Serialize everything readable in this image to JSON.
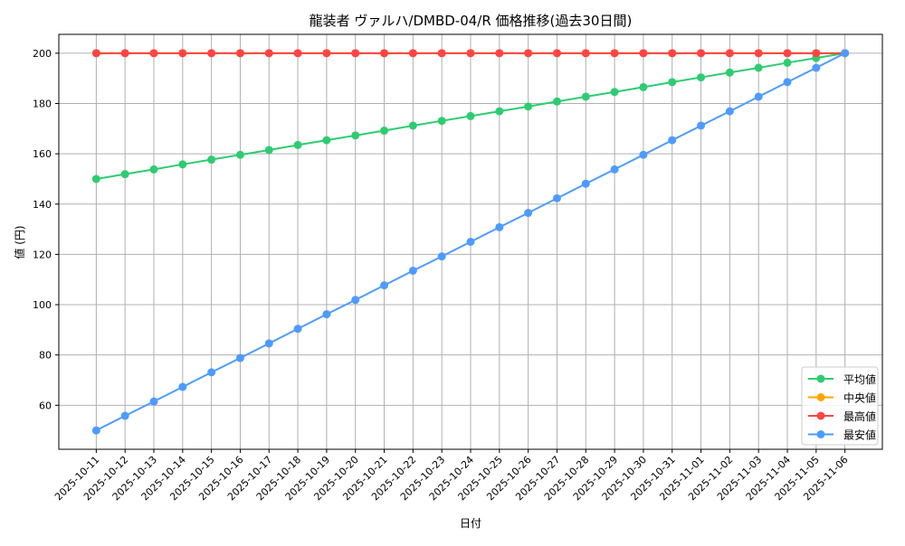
{
  "chart_data": {
    "type": "line",
    "title": "龍装者 ヴァルハ/DMBD-04/R 価格推移(過去30日間)",
    "xlabel": "日付",
    "ylabel": "値 (円)",
    "ylim": [
      42.5,
      207.5
    ],
    "yticks": [
      60,
      80,
      100,
      120,
      140,
      160,
      180,
      200
    ],
    "grid": true,
    "legend_position": "bottom-right",
    "categories": [
      "2025-10-11",
      "2025-10-12",
      "2025-10-13",
      "2025-10-14",
      "2025-10-15",
      "2025-10-16",
      "2025-10-17",
      "2025-10-18",
      "2025-10-19",
      "2025-10-20",
      "2025-10-21",
      "2025-10-22",
      "2025-10-23",
      "2025-10-24",
      "2025-10-25",
      "2025-10-26",
      "2025-10-27",
      "2025-10-28",
      "2025-10-29",
      "2025-10-30",
      "2025-10-31",
      "2025-11-01",
      "2025-11-02",
      "2025-11-03",
      "2025-11-04",
      "2025-11-05",
      "2025-11-06"
    ],
    "series": [
      {
        "name": "平均値",
        "color": "#2ecc71",
        "values": [
          150,
          151.9,
          153.8,
          155.8,
          157.7,
          159.6,
          161.5,
          163.5,
          165.4,
          167.3,
          169.2,
          171.2,
          173.1,
          175,
          176.9,
          178.8,
          180.8,
          182.7,
          184.6,
          186.5,
          188.5,
          190.4,
          192.3,
          194.2,
          196.2,
          198.1,
          200
        ]
      },
      {
        "name": "中央値",
        "color": "#ffa500",
        "values": [
          200,
          200,
          200,
          200,
          200,
          200,
          200,
          200,
          200,
          200,
          200,
          200,
          200,
          200,
          200,
          200,
          200,
          200,
          200,
          200,
          200,
          200,
          200,
          200,
          200,
          200,
          200
        ]
      },
      {
        "name": "最高値",
        "color": "#ff4444",
        "values": [
          200,
          200,
          200,
          200,
          200,
          200,
          200,
          200,
          200,
          200,
          200,
          200,
          200,
          200,
          200,
          200,
          200,
          200,
          200,
          200,
          200,
          200,
          200,
          200,
          200,
          200,
          200
        ]
      },
      {
        "name": "最安値",
        "color": "#4d9bff",
        "values": [
          50,
          55.8,
          61.5,
          67.3,
          73.1,
          78.8,
          84.6,
          90.4,
          96.2,
          101.9,
          107.7,
          113.5,
          119.2,
          125,
          130.8,
          136.5,
          142.3,
          148.1,
          153.8,
          159.6,
          165.4,
          171.2,
          176.9,
          182.7,
          188.5,
          194.2,
          200
        ]
      }
    ]
  }
}
